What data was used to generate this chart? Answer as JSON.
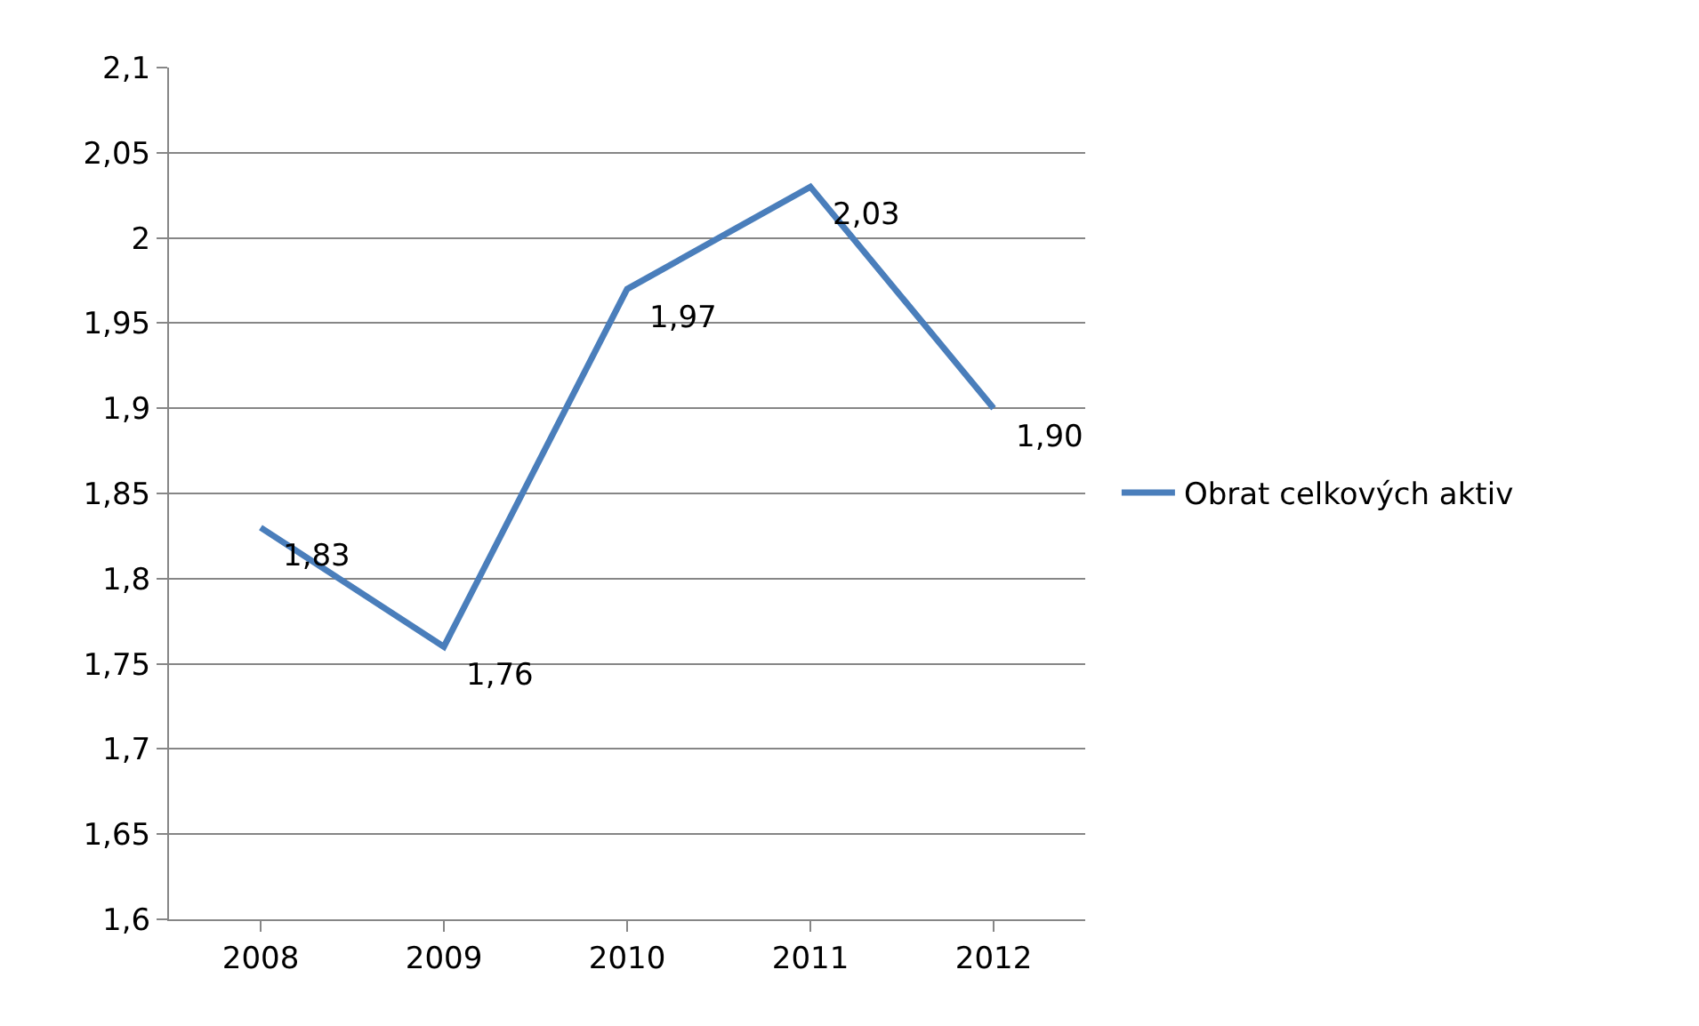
{
  "chart_data": {
    "type": "line",
    "categories": [
      "2008",
      "2009",
      "2010",
      "2011",
      "2012"
    ],
    "series": [
      {
        "name": "Obrat celkových aktiv",
        "color": "#4a7ebb",
        "values": [
          1.83,
          1.76,
          1.97,
          2.03,
          1.9
        ],
        "value_labels": [
          "1,83",
          "1,76",
          "1,97",
          "2,03",
          "1,90"
        ]
      }
    ],
    "ylim": [
      1.6,
      2.1
    ],
    "yticks": [
      {
        "value": 1.6,
        "label": "1,6"
      },
      {
        "value": 1.65,
        "label": "1,65"
      },
      {
        "value": 1.7,
        "label": "1,7"
      },
      {
        "value": 1.75,
        "label": "1,75"
      },
      {
        "value": 1.8,
        "label": "1,8"
      },
      {
        "value": 1.85,
        "label": "1,85"
      },
      {
        "value": 1.9,
        "label": "1,9"
      },
      {
        "value": 1.95,
        "label": "1,95"
      },
      2,
      {
        "value": 2.05,
        "label": "2,05"
      },
      {
        "value": 2.1,
        "label": "2,1"
      }
    ],
    "grid": "y",
    "legend": "right",
    "marker": "none",
    "line_style": "solid"
  }
}
